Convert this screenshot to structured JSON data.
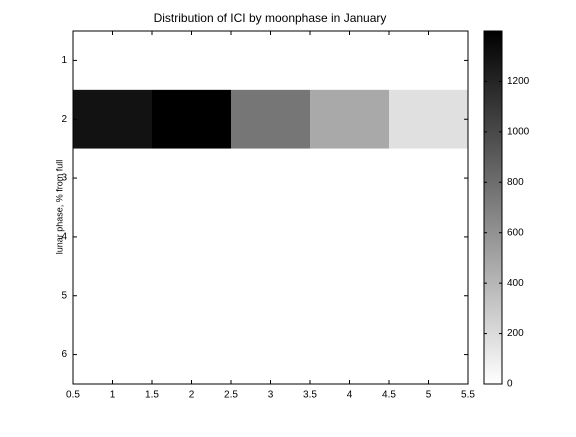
{
  "chart_data": {
    "type": "heatmap",
    "title": "Distribution of ICI by moonphase in January",
    "ylabel": "lunar phase, % from full",
    "x": [
      1,
      2,
      3,
      4,
      5
    ],
    "y": [
      1,
      2,
      3,
      4,
      5,
      6
    ],
    "z": [
      [
        0,
        0,
        0,
        0,
        0
      ],
      [
        1300,
        1400,
        750,
        470,
        170
      ],
      [
        0,
        0,
        0,
        0,
        0
      ],
      [
        0,
        0,
        0,
        0,
        0
      ],
      [
        0,
        0,
        0,
        0,
        0
      ],
      [
        0,
        0,
        0,
        0,
        0
      ]
    ],
    "xlim": [
      0.5,
      5.5
    ],
    "xticks": [
      0.5,
      1,
      1.5,
      2,
      2.5,
      3,
      3.5,
      4,
      4.5,
      5,
      5.5
    ],
    "ylim": [
      0.5,
      6.5
    ],
    "yticks": [
      1,
      2,
      3,
      4,
      5,
      6
    ],
    "y_reversed": true,
    "colormap": "gray_reversed",
    "clim": [
      0,
      1400
    ],
    "colorbar_ticks": [
      0,
      200,
      400,
      600,
      800,
      1000,
      1200
    ]
  }
}
